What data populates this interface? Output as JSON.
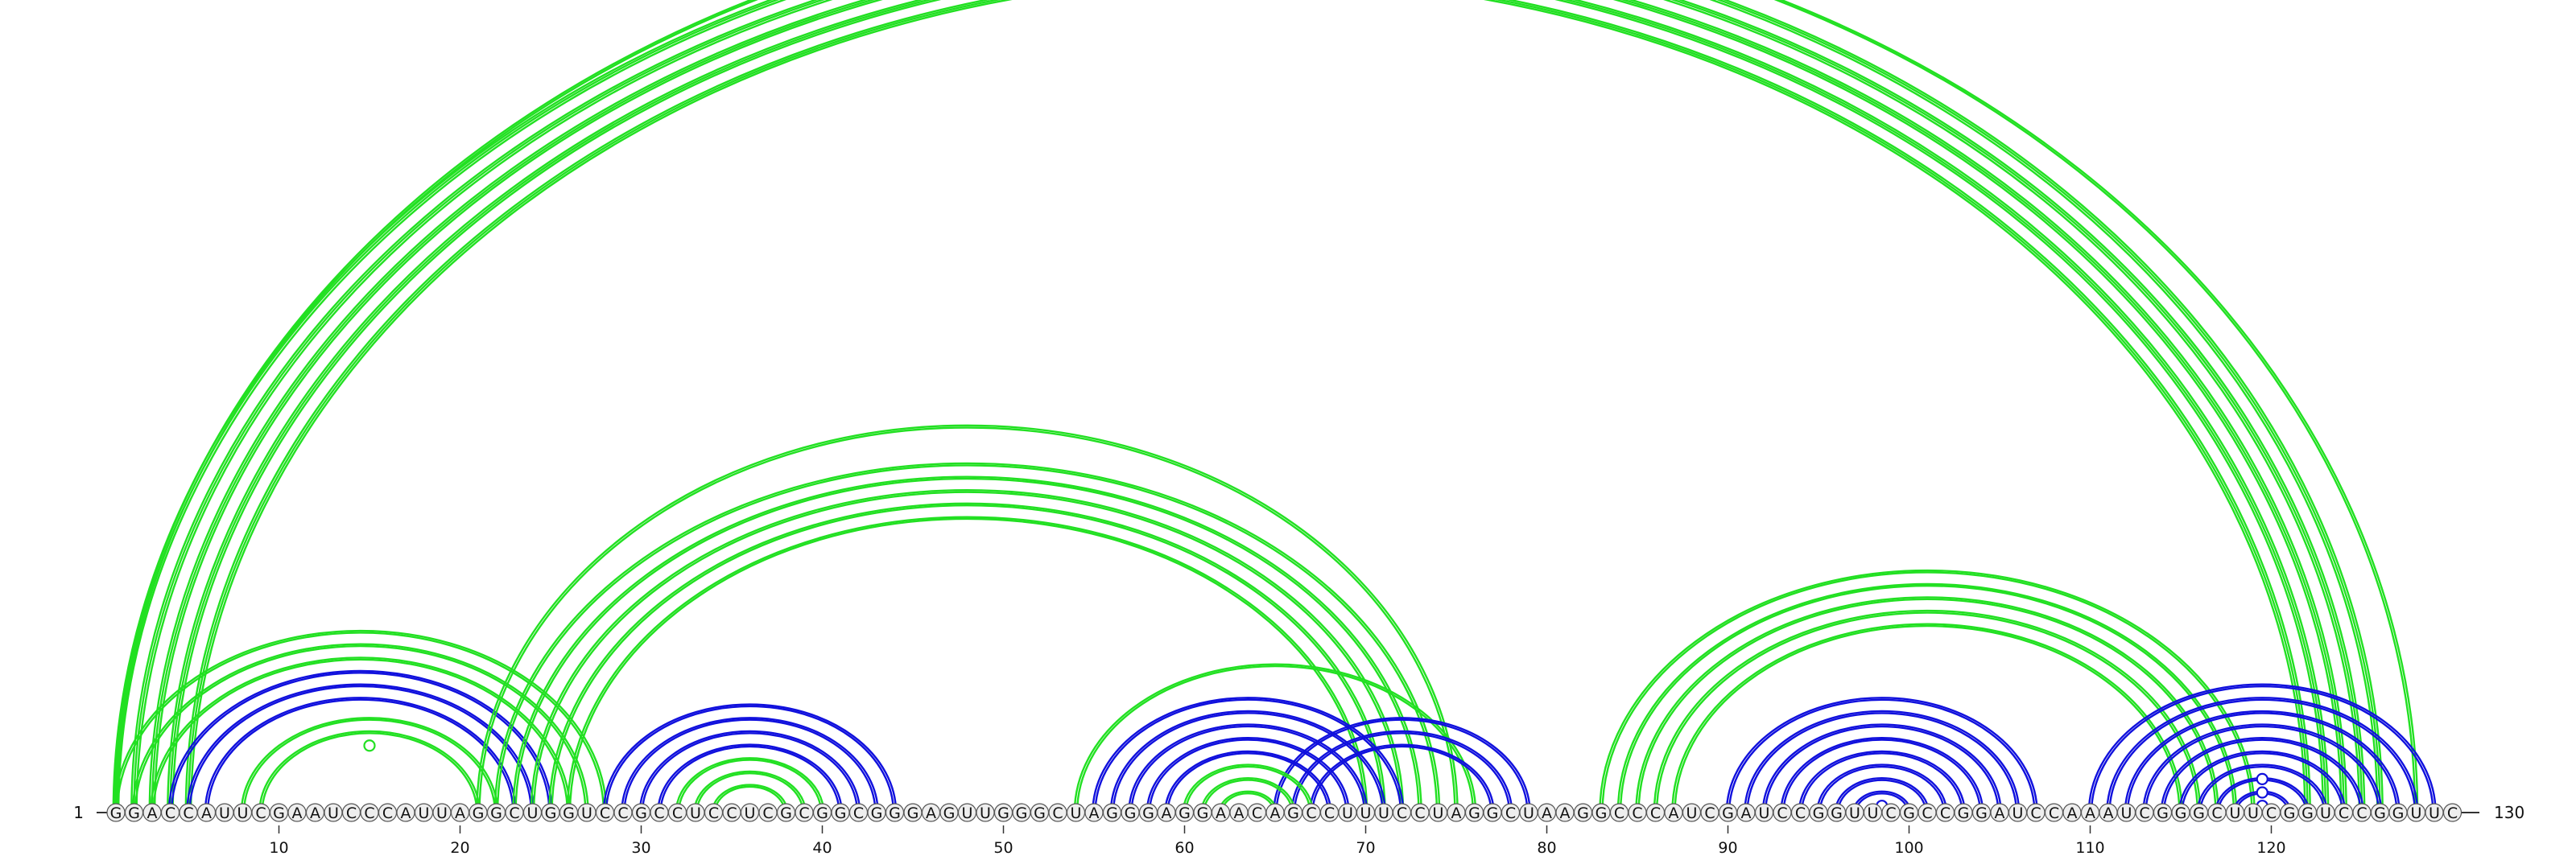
{
  "chart_data": {
    "type": "arc-diagram",
    "sequence": "GGACCAUUCGAAUCCCAUUAGGCUGGUCCGCCUCCUCGCGGCGGGAGUUGGGCUAGGGAGGAACAGCCUUUCCUAGGCUAAGGCCCAUCGAUCCGGUUCGCCGGAUCCAAAUCGGGCUUCGGUCCGGUUC",
    "length": 130,
    "start_label": "1",
    "end_label": "130",
    "tick_labels": [
      "10",
      "20",
      "30",
      "40",
      "50",
      "60",
      "70",
      "80",
      "90",
      "100",
      "110",
      "120"
    ],
    "tick_positions": [
      10,
      20,
      30,
      40,
      50,
      60,
      70,
      80,
      90,
      100,
      110,
      120
    ],
    "colors": {
      "green": "#22e022",
      "blue": "#1010dd",
      "axis": "#333333"
    },
    "upper_arcs": [
      {
        "i": 1,
        "j": 128,
        "color": "green",
        "lines": 2
      },
      {
        "i": 1,
        "j": 126,
        "color": "green",
        "lines": 3
      },
      {
        "i": 2,
        "j": 125,
        "color": "green",
        "lines": 3
      },
      {
        "i": 3,
        "j": 124,
        "color": "green",
        "lines": 3
      },
      {
        "i": 4,
        "j": 123,
        "color": "green",
        "lines": 3
      },
      {
        "i": 5,
        "j": 122,
        "color": "green",
        "lines": 3
      },
      {
        "i": 1,
        "j": 28,
        "color": "green",
        "lines": 2
      },
      {
        "i": 2,
        "j": 27,
        "color": "green",
        "lines": 2
      },
      {
        "i": 3,
        "j": 26,
        "color": "green",
        "lines": 2
      },
      {
        "i": 4,
        "j": 25,
        "color": "blue",
        "lines": 2
      },
      {
        "i": 5,
        "j": 24,
        "color": "blue",
        "lines": 2
      },
      {
        "i": 6,
        "j": 23,
        "color": "blue",
        "lines": 2
      },
      {
        "i": 8,
        "j": 22,
        "color": "green",
        "lines": 2
      },
      {
        "i": 9,
        "j": 21,
        "color": "green",
        "lines": 2
      },
      {
        "i": 21,
        "j": 75,
        "color": "green",
        "lines": 2
      },
      {
        "i": 22,
        "j": 74,
        "color": "green",
        "lines": 2
      },
      {
        "i": 23,
        "j": 73,
        "color": "green",
        "lines": 2
      },
      {
        "i": 24,
        "j": 72,
        "color": "green",
        "lines": 2
      },
      {
        "i": 25,
        "j": 71,
        "color": "green",
        "lines": 2
      },
      {
        "i": 26,
        "j": 70,
        "color": "green",
        "lines": 2
      },
      {
        "i": 28,
        "j": 44,
        "color": "blue",
        "lines": 2
      },
      {
        "i": 29,
        "j": 43,
        "color": "blue",
        "lines": 2
      },
      {
        "i": 30,
        "j": 42,
        "color": "blue",
        "lines": 2
      },
      {
        "i": 31,
        "j": 41,
        "color": "blue",
        "lines": 2
      },
      {
        "i": 32,
        "j": 40,
        "color": "green",
        "lines": 2
      },
      {
        "i": 33,
        "j": 39,
        "color": "green",
        "lines": 2
      },
      {
        "i": 34,
        "j": 38,
        "color": "green",
        "lines": 2
      },
      {
        "i": 54,
        "j": 76,
        "color": "green",
        "lines": 2
      },
      {
        "i": 55,
        "j": 72,
        "color": "blue",
        "lines": 2
      },
      {
        "i": 56,
        "j": 71,
        "color": "blue",
        "lines": 2
      },
      {
        "i": 57,
        "j": 70,
        "color": "blue",
        "lines": 2
      },
      {
        "i": 58,
        "j": 69,
        "color": "blue",
        "lines": 2
      },
      {
        "i": 59,
        "j": 68,
        "color": "blue",
        "lines": 2
      },
      {
        "i": 65,
        "j": 79,
        "color": "blue",
        "lines": 2
      },
      {
        "i": 66,
        "j": 78,
        "color": "blue",
        "lines": 2
      },
      {
        "i": 67,
        "j": 77,
        "color": "blue",
        "lines": 2
      },
      {
        "i": 60,
        "j": 67,
        "color": "green",
        "lines": 2
      },
      {
        "i": 61,
        "j": 66,
        "color": "green",
        "lines": 2
      },
      {
        "i": 62,
        "j": 65,
        "color": "green",
        "lines": 2
      },
      {
        "i": 83,
        "j": 119,
        "color": "green",
        "lines": 2
      },
      {
        "i": 84,
        "j": 118,
        "color": "green",
        "lines": 2
      },
      {
        "i": 85,
        "j": 117,
        "color": "green",
        "lines": 2
      },
      {
        "i": 86,
        "j": 116,
        "color": "green",
        "lines": 2
      },
      {
        "i": 87,
        "j": 115,
        "color": "green",
        "lines": 2
      },
      {
        "i": 90,
        "j": 107,
        "color": "blue",
        "lines": 2
      },
      {
        "i": 91,
        "j": 106,
        "color": "blue",
        "lines": 2
      },
      {
        "i": 92,
        "j": 105,
        "color": "blue",
        "lines": 2
      },
      {
        "i": 93,
        "j": 104,
        "color": "blue",
        "lines": 2
      },
      {
        "i": 94,
        "j": 103,
        "color": "blue",
        "lines": 2
      },
      {
        "i": 95,
        "j": 102,
        "color": "blue",
        "lines": 2
      },
      {
        "i": 96,
        "j": 101,
        "color": "blue",
        "lines": 2
      },
      {
        "i": 97,
        "j": 100,
        "color": "blue",
        "lines": 2
      },
      {
        "i": 98,
        "j": 99,
        "color": "blue",
        "lines": 2
      },
      {
        "i": 110,
        "j": 129,
        "color": "blue",
        "lines": 2
      },
      {
        "i": 111,
        "j": 128,
        "color": "blue",
        "lines": 2
      },
      {
        "i": 112,
        "j": 127,
        "color": "blue",
        "lines": 2
      },
      {
        "i": 113,
        "j": 126,
        "color": "blue",
        "lines": 2
      },
      {
        "i": 114,
        "j": 125,
        "color": "blue",
        "lines": 2
      },
      {
        "i": 115,
        "j": 124,
        "color": "blue",
        "lines": 2
      },
      {
        "i": 116,
        "j": 123,
        "color": "blue",
        "lines": 2
      },
      {
        "i": 117,
        "j": 122,
        "color": "blue",
        "lines": 2
      },
      {
        "i": 118,
        "j": 121,
        "color": "blue",
        "lines": 2
      }
    ],
    "markers": [
      {
        "i": 1,
        "j": 128,
        "color": "green"
      },
      {
        "i": 10,
        "j": 20,
        "color": "green"
      },
      {
        "i": 98,
        "j": 99,
        "color": "blue"
      },
      {
        "i": 117,
        "j": 122,
        "color": "blue"
      },
      {
        "i": 118,
        "j": 121,
        "color": "blue"
      },
      {
        "i": 119,
        "j": 120,
        "color": "blue"
      }
    ]
  }
}
